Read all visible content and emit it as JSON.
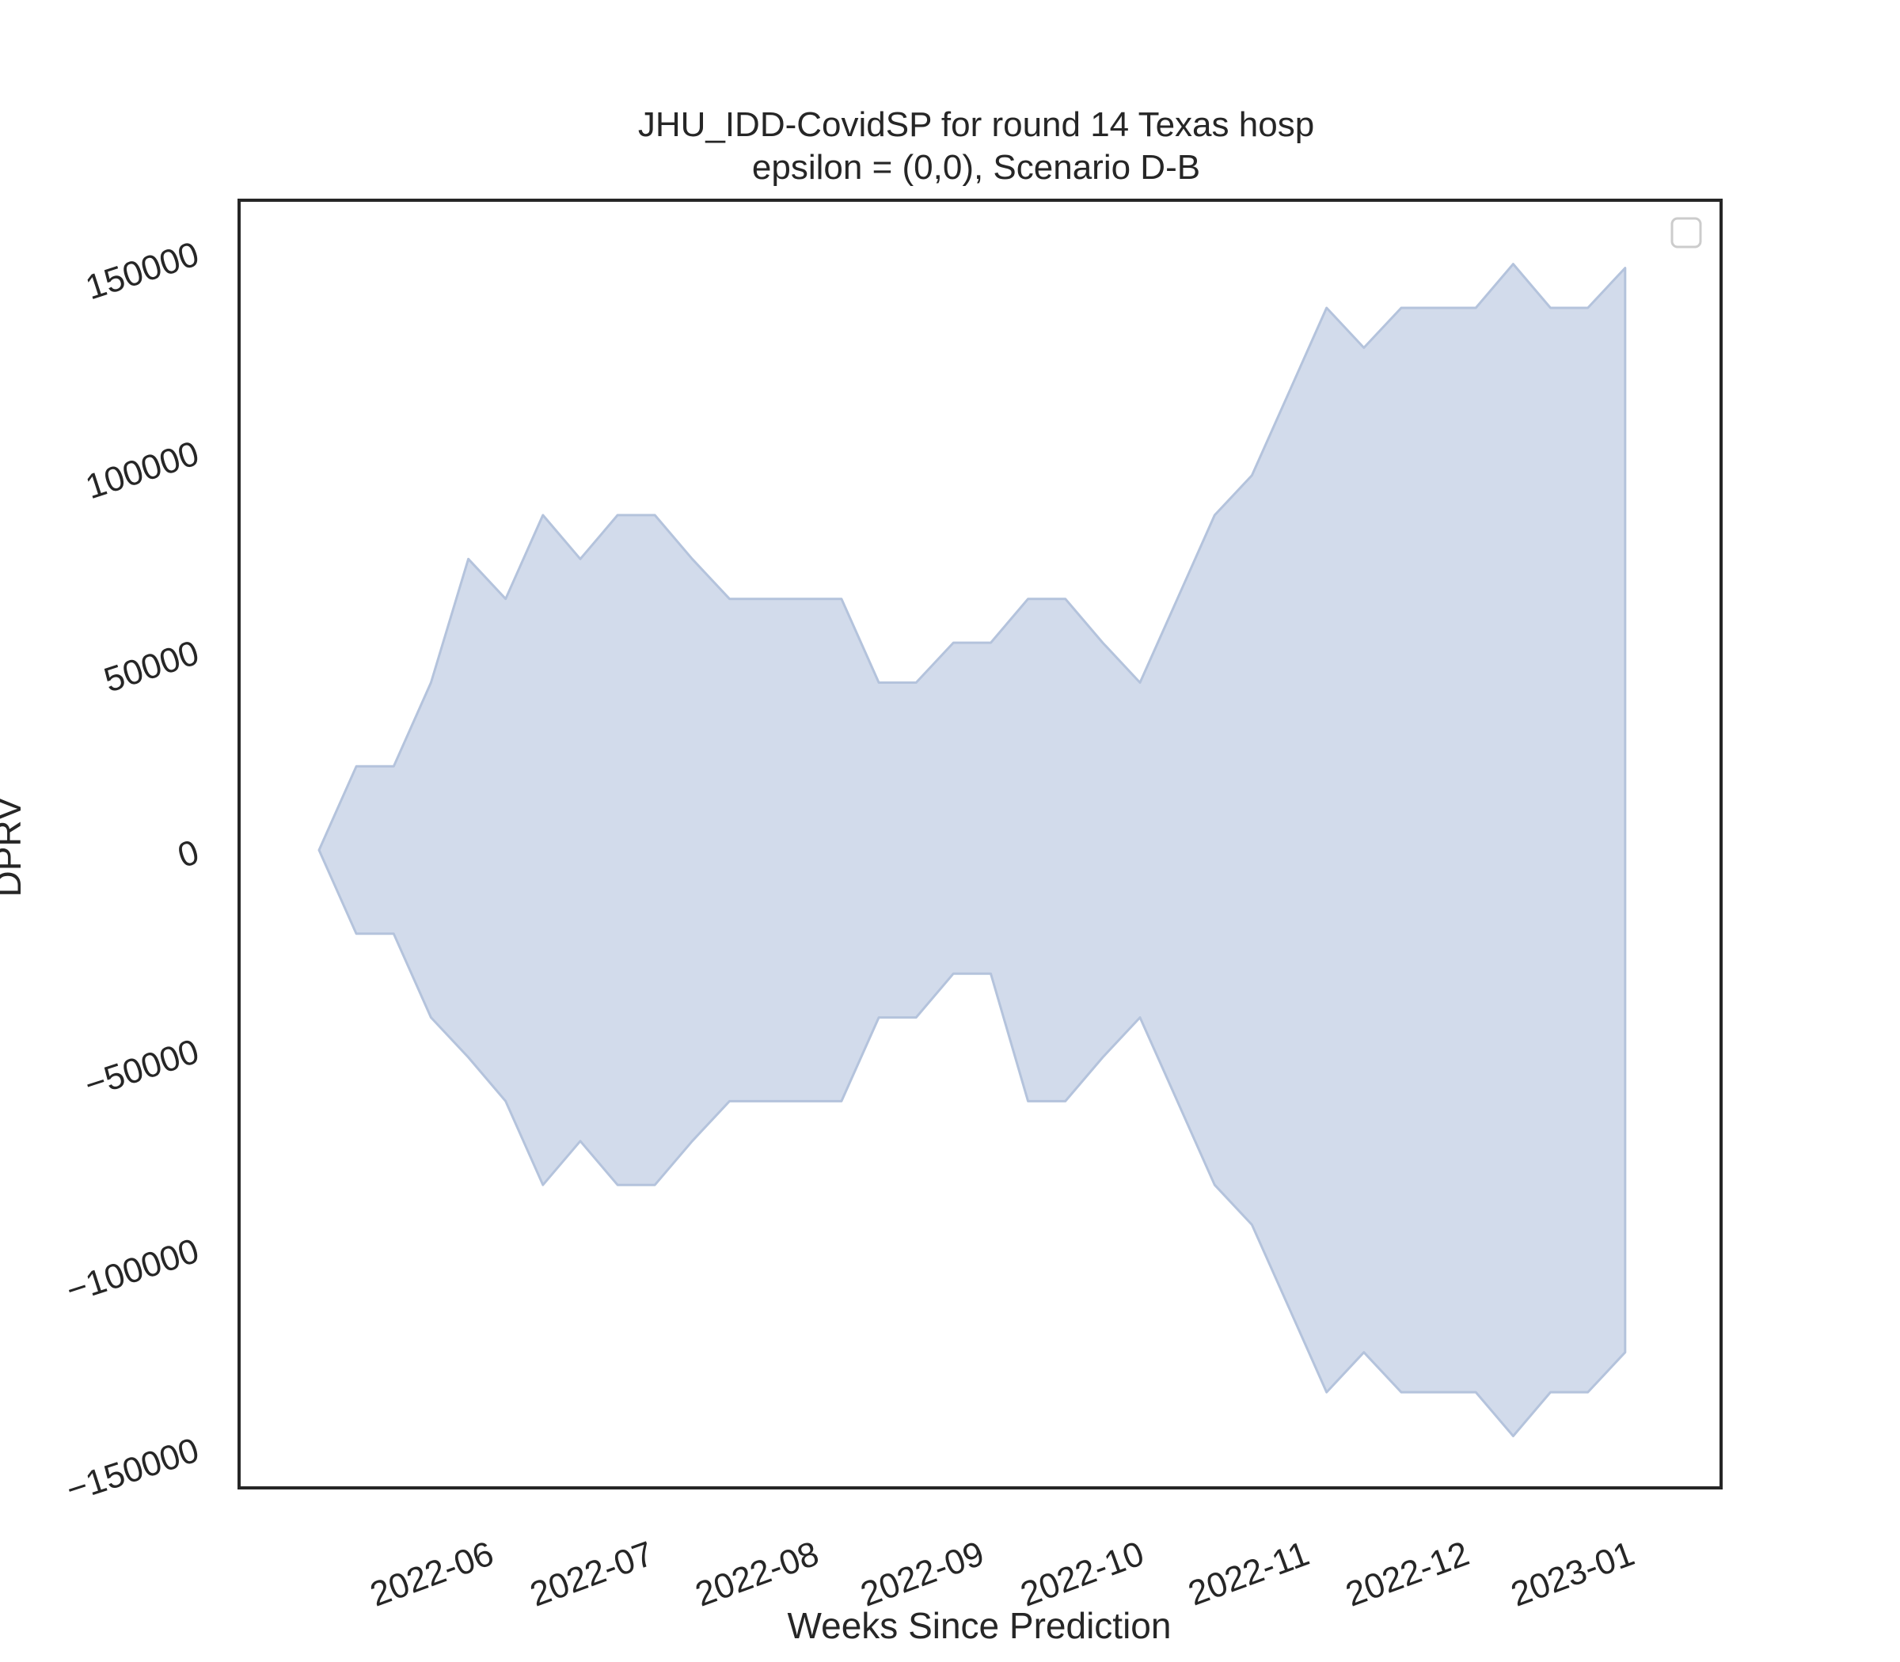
{
  "chart_data": {
    "type": "area",
    "title_line1": "JHU_IDD-CovidSP for round 14 Texas hosp",
    "title_line2": "epsilon = (0,0), Scenario D-B",
    "xlabel": "Weeks Since Prediction",
    "ylabel": "DPRV",
    "x_ticks": [
      "2022-06",
      "2022-07",
      "2022-08",
      "2022-09",
      "2022-10",
      "2022-11",
      "2022-12",
      "2023-01"
    ],
    "y_ticks": [
      -150000,
      -100000,
      -50000,
      0,
      50000,
      100000,
      150000
    ],
    "y_tick_labels": [
      "−150000",
      "−100000",
      "−50000",
      "0",
      "50000",
      "100000",
      "150000"
    ],
    "xlim": [
      "2022-04-22",
      "2023-01-25"
    ],
    "ylim": [
      -160000,
      163000
    ],
    "grid": false,
    "legend": "top-right (empty)",
    "fill_color": "#d2dbeb",
    "edge_color": "#b4c3dc",
    "series": [
      {
        "dates": [
          "2022-05-07",
          "2022-05-14",
          "2022-05-21",
          "2022-05-28",
          "2022-06-04",
          "2022-06-11",
          "2022-06-18",
          "2022-06-25",
          "2022-07-02",
          "2022-07-09",
          "2022-07-16",
          "2022-07-23",
          "2022-07-30",
          "2022-08-06",
          "2022-08-13",
          "2022-08-20",
          "2022-08-27",
          "2022-09-03",
          "2022-09-10",
          "2022-09-17",
          "2022-09-24",
          "2022-10-01",
          "2022-10-08",
          "2022-10-15",
          "2022-10-22",
          "2022-10-29",
          "2022-11-05",
          "2022-11-12",
          "2022-11-19",
          "2022-11-26",
          "2022-12-03",
          "2022-12-10",
          "2022-12-17",
          "2022-12-24",
          "2022-12-31",
          "2023-01-07"
        ],
        "upper": [
          0,
          21000,
          21000,
          42000,
          73000,
          63000,
          84000,
          73000,
          84000,
          84000,
          73000,
          63000,
          63000,
          63000,
          63000,
          42000,
          42000,
          52000,
          52000,
          63000,
          63000,
          52000,
          42000,
          63000,
          84000,
          94000,
          115000,
          136000,
          126000,
          136000,
          136000,
          136000,
          147000,
          136000,
          136000,
          146000
        ],
        "lower": [
          0,
          -21000,
          -21000,
          -42000,
          -52000,
          -63000,
          -84000,
          -73000,
          -84000,
          -84000,
          -73000,
          -63000,
          -63000,
          -63000,
          -63000,
          -42000,
          -42000,
          -31000,
          -31000,
          -63000,
          -63000,
          -52000,
          -42000,
          -63000,
          -84000,
          -94000,
          -115000,
          -136000,
          -126000,
          -136000,
          -136000,
          -136000,
          -147000,
          -136000,
          -136000,
          -126000
        ]
      }
    ]
  }
}
